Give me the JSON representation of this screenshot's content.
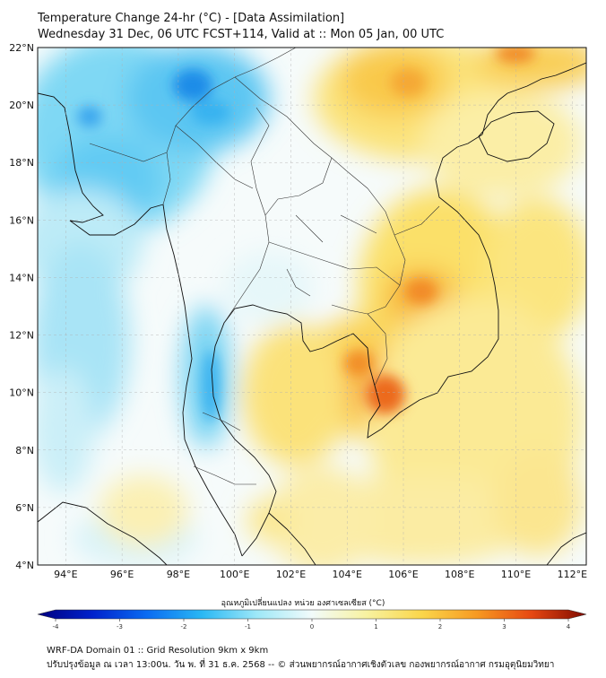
{
  "header": {
    "title_line1": "Temperature Change 24-hr (°C) - [Data Assimilation]",
    "title_line2": "Wednesday 31 Dec, 06 UTC FCST+114, Valid at :: Mon 05 Jan, 00 UTC"
  },
  "map": {
    "lat_range": [
      4,
      22
    ],
    "lon_range": [
      93,
      112.5
    ],
    "lat_labels": [
      "22°N",
      "20°N",
      "18°N",
      "16°N",
      "14°N",
      "12°N",
      "10°N",
      "8°N",
      "6°N",
      "4°N"
    ],
    "lat_values": [
      22,
      20,
      18,
      16,
      14,
      12,
      10,
      8,
      6,
      4
    ],
    "lon_labels": [
      "94°E",
      "96°E",
      "98°E",
      "100°E",
      "102°E",
      "104°E",
      "106°E",
      "108°E",
      "110°E",
      "112°E"
    ],
    "lon_values": [
      94,
      96,
      98,
      100,
      102,
      104,
      106,
      108,
      110,
      112
    ]
  },
  "colorbar": {
    "title": "อุณหภูมิเปลี่ยนแปลง หน่วย องศาเซลเซียส (°C)",
    "ticks": [
      "-4",
      "-3",
      "-2",
      "-1",
      "0",
      "1",
      "2",
      "3",
      "4"
    ],
    "min": -4,
    "max": 4,
    "colors": [
      "#00007f",
      "#0022cc",
      "#0a6cf2",
      "#2ab8f4",
      "#9ee8f8",
      "#f2fbfa",
      "#f8f2a0",
      "#fad64a",
      "#f79a22",
      "#e64812",
      "#7f0a00"
    ]
  },
  "footer": {
    "line1": "WRF-DA Domain 01 :: Grid Resolution 9km x 9km",
    "line2": "ปรับปรุงข้อมูล ณ เวลา 13:00น. วัน พ. ที่ 31 ธ.ค. 2568 -- © ส่วนพยากรณ์อากาศเชิงตัวเลข กองพยากรณ์อากาศ กรมอุตุนิยมวิทยา"
  }
}
